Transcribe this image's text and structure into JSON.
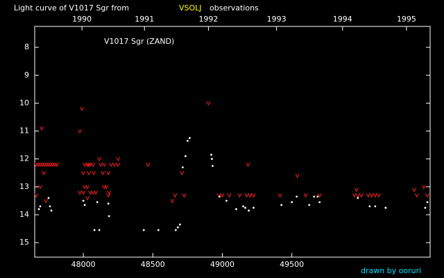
{
  "chart_data": {
    "type": "scatter",
    "title": "Light curve of V1017 Sgr from",
    "title_source": "VSOLJ",
    "title_tail": "observations",
    "annotation": "V1017 Sgr (ZAND)",
    "credit": "drawn by ooruri",
    "xlim": [
      47650,
      50495
    ],
    "xticks": [
      48000,
      48500,
      49000,
      49500
    ],
    "x2ticks": [
      {
        "value": 47990,
        "label": "1990"
      },
      {
        "value": 48440,
        "label": "1991"
      },
      {
        "value": 48900,
        "label": "1992"
      },
      {
        "value": 49390,
        "label": "1993"
      },
      {
        "value": 49865,
        "label": "1994"
      },
      {
        "value": 50325,
        "label": "1995"
      }
    ],
    "ylim": [
      7.25,
      15.52
    ],
    "y_inverted": true,
    "yticks": [
      8,
      9,
      10,
      11,
      12,
      13,
      14,
      15
    ],
    "grid": false,
    "series": [
      {
        "color": "#ff2020",
        "marker": "v",
        "x": [
          47660,
          47675,
          47690,
          47705,
          47720,
          47735,
          47750,
          47765,
          47780,
          47795,
          47810,
          47660,
          47690,
          47715,
          47700,
          47730,
          47975,
          47990,
          48010,
          48030,
          48040,
          48050,
          48070,
          48000,
          48040,
          48075,
          48010,
          48030,
          47975,
          48000,
          48050,
          48070,
          48090,
          48030,
          48115,
          48125,
          48150,
          48140,
          48180,
          48150,
          48165,
          48185,
          48200,
          48225,
          48250,
          48250,
          48180,
          48465,
          48640,
          48660,
          48710,
          48725,
          48900,
          48975,
          49000,
          49050,
          49125,
          49175,
          49200,
          49225,
          49185,
          49415,
          49540,
          49600,
          49700,
          49950,
          49975,
          50000,
          50050,
          50075,
          50100,
          50125,
          49965,
          50380,
          50400,
          50450,
          50475
        ],
        "values": [
          12.2,
          12.2,
          12.2,
          12.2,
          12.2,
          12.2,
          12.2,
          12.2,
          12.2,
          12.2,
          12.2,
          13.3,
          13.0,
          12.5,
          10.9,
          13.5,
          11.0,
          10.2,
          12.2,
          12.2,
          12.2,
          12.2,
          12.2,
          12.5,
          12.5,
          12.5,
          13.0,
          13.0,
          13.2,
          13.2,
          13.2,
          13.2,
          13.2,
          13.4,
          12.0,
          12.2,
          12.2,
          12.5,
          12.5,
          13.0,
          13.0,
          13.2,
          12.2,
          12.2,
          12.2,
          12.0,
          13.3,
          12.2,
          13.5,
          13.3,
          12.5,
          13.3,
          10.0,
          13.3,
          13.3,
          13.3,
          13.3,
          13.3,
          13.3,
          13.3,
          12.2,
          13.3,
          12.6,
          13.3,
          13.3,
          13.3,
          13.3,
          13.3,
          13.3,
          13.3,
          13.3,
          13.3,
          13.1,
          13.1,
          13.3,
          13.0,
          13.3
        ]
      },
      {
        "color": "#ffffff",
        "marker": "dot",
        "x": [
          47680,
          47690,
          47750,
          47760,
          47770,
          48000,
          48010,
          48080,
          48115,
          48100,
          48180,
          48185,
          48435,
          48540,
          48665,
          48680,
          48695,
          48715,
          48735,
          48750,
          48765,
          48920,
          48930,
          48925,
          48980,
          49030,
          49100,
          49150,
          49165,
          49190,
          49225,
          49425,
          49500,
          49535,
          49625,
          49660,
          49685,
          49700,
          49975,
          50060,
          50100,
          50175,
          50460,
          50475
        ],
        "values": [
          13.8,
          13.7,
          13.4,
          13.7,
          13.85,
          13.5,
          13.65,
          14.55,
          14.55,
          13.55,
          13.6,
          14.05,
          14.55,
          14.55,
          14.55,
          14.45,
          14.35,
          12.3,
          11.9,
          11.35,
          11.25,
          11.85,
          12.25,
          12.0,
          13.35,
          13.5,
          13.8,
          13.7,
          13.75,
          13.85,
          13.75,
          13.65,
          13.55,
          13.35,
          13.65,
          13.35,
          13.35,
          13.55,
          13.4,
          13.7,
          13.7,
          13.75,
          13.75,
          13.55
        ]
      }
    ]
  }
}
